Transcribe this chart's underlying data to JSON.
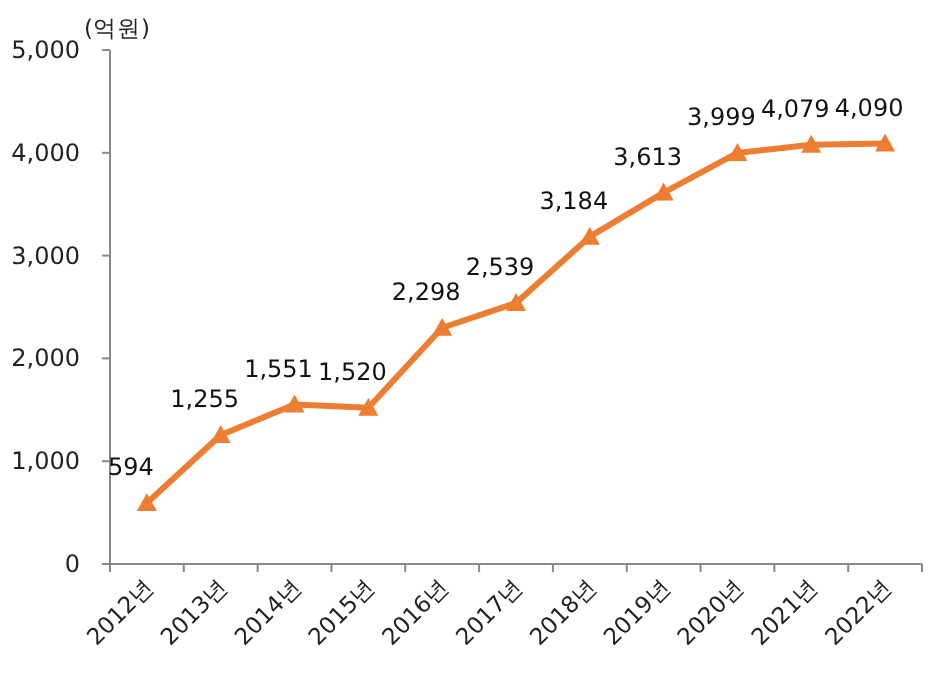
{
  "chart_data": {
    "type": "line",
    "ylabel": "(억원)",
    "categories": [
      "2012년",
      "2013년",
      "2014년",
      "2015년",
      "2016년",
      "2017년",
      "2018년",
      "2019년",
      "2020년",
      "2021년",
      "2022년"
    ],
    "series": [
      {
        "color": "#ed7d31",
        "values": [
          594,
          1255,
          1551,
          1520,
          2298,
          2539,
          3184,
          3613,
          3999,
          4079,
          4090
        ],
        "value_labels": [
          "594",
          "1,255",
          "1,551",
          "1,520",
          "2,298",
          "2,539",
          "3,184",
          "3,613",
          "3,999",
          "4,079",
          "4,090"
        ]
      }
    ],
    "ylim": [
      0,
      5000
    ],
    "yticks": [
      {
        "value": 0,
        "label": "0"
      },
      {
        "value": 1000,
        "label": "1,000"
      },
      {
        "value": 2000,
        "label": "2,000"
      },
      {
        "value": 3000,
        "label": "3,000"
      },
      {
        "value": 4000,
        "label": "4,000"
      },
      {
        "value": 5000,
        "label": "5,000"
      }
    ],
    "marker": "triangle"
  }
}
